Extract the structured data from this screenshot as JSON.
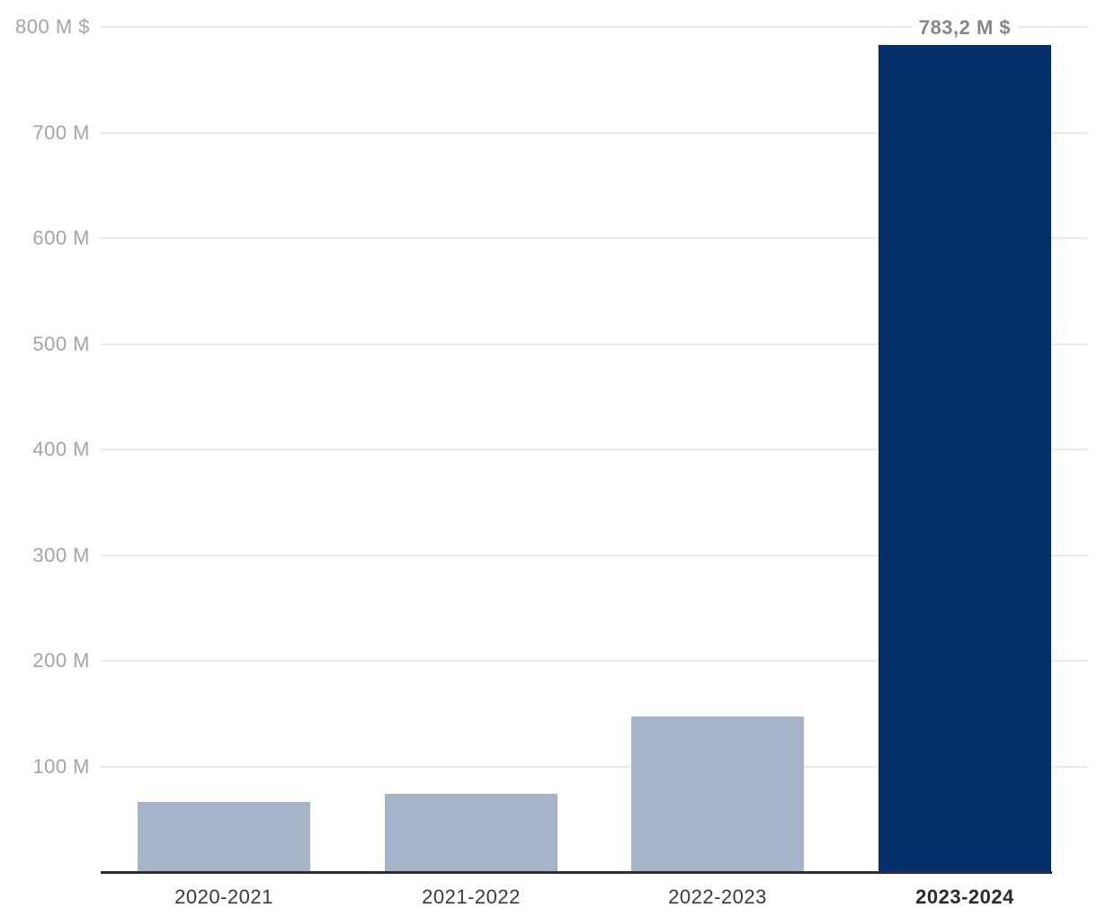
{
  "chart_data": {
    "type": "bar",
    "title": "",
    "xlabel": "",
    "ylabel": "",
    "unit": "M $",
    "categories": [
      "2020-2021",
      "2021-2022",
      "2022-2023",
      "2023-2024"
    ],
    "values": [
      66,
      74,
      147.5,
      783.2
    ],
    "value_labels": [
      "",
      "",
      "",
      "783,2 M $"
    ],
    "highlighted_index": 3,
    "ylim": [
      0,
      800
    ],
    "grid": true,
    "legend": "none",
    "y_ticks": [
      {
        "value": 800,
        "label": "800 M $"
      },
      {
        "value": 700,
        "label": "700 M"
      },
      {
        "value": 600,
        "label": "600 M"
      },
      {
        "value": 500,
        "label": "500 M"
      },
      {
        "value": 400,
        "label": "400 M"
      },
      {
        "value": 300,
        "label": "300 M"
      },
      {
        "value": 200,
        "label": "200 M"
      },
      {
        "value": 100,
        "label": "100 M"
      }
    ],
    "colors": {
      "bar": "#a6b4ca",
      "highlight_bar": "#032f6a",
      "grid_line": "#e9e9e9",
      "axis_line": "#2e2e2e",
      "tick_label": "#a4a4a4",
      "x_label": "#3a3a3a",
      "x_label_emph": "#2b2b2b",
      "value_label": "#878787"
    }
  }
}
